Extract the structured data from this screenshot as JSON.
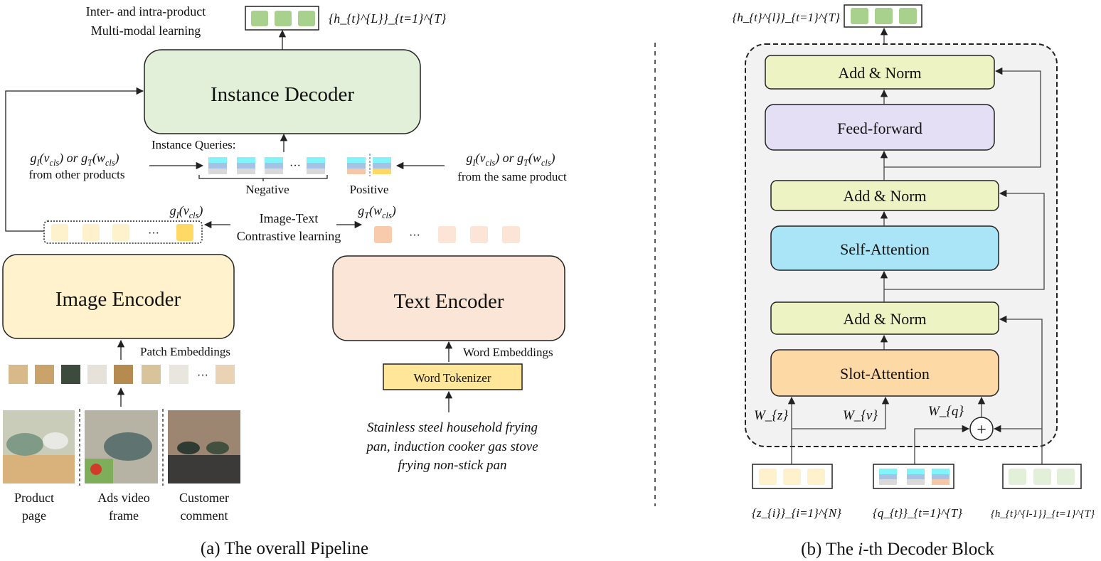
{
  "left": {
    "top_label_line1": "Inter- and intra-product",
    "top_label_line2": "Multi-modal learning",
    "output_math": "{h_{t}^{L}}_{t=1}^{T}",
    "instance_decoder": "Instance Decoder",
    "instance_queries": "Instance Queries:",
    "other_math": "g_{I}(v_{cls}) or g_{T}(w_{cls})",
    "other_text": "from other products",
    "same_math": "g_{I}(v_{cls}) or g_{T}(w_{cls})",
    "same_text": "from the same product",
    "negative": "Negative",
    "positive": "Positive",
    "ellipsis": "···",
    "gi_math": "g_{I}(v_{cls})",
    "gt_math": "g_{T}(w_{cls})",
    "contrastive_line1": "Image-Text",
    "contrastive_line2": "Contrastive learning",
    "image_encoder": "Image Encoder",
    "text_encoder": "Text Encoder",
    "patch_embeddings": "Patch Embeddings",
    "word_embeddings": "Word Embeddings",
    "word_tokenizer": "Word Tokenizer",
    "input_text": [
      "Stainless steel household frying",
      "pan, induction cooker gas stove",
      "frying non-stick pan"
    ],
    "sources": [
      {
        "line1": "Product",
        "line2": "page"
      },
      {
        "line1": "Ads video",
        "line2": "frame"
      },
      {
        "line1": "Customer",
        "line2": "comment"
      }
    ],
    "caption": "(a) The overall Pipeline"
  },
  "right": {
    "output_math": "{h_{t}^{l}}_{t=1}^{T}",
    "add_norm": "Add & Norm",
    "feed_forward": "Feed-forward",
    "self_attention": "Self-Attention",
    "slot_attention": "Slot-Attention",
    "wz": "W_{z}",
    "wv": "W_{v}",
    "wq": "W_{q}",
    "plus": "+",
    "z_math": "{z_{i}}_{i=1}^{N}",
    "q_math": "{q_{t}}_{t=1}^{T}",
    "h_math": "{h_{t}^{l-1}}_{t=1}^{T}",
    "caption_prefix": "(b) The ",
    "caption_var": "i",
    "caption_suffix": "-th Decoder Block"
  },
  "colors": {
    "decoder_green": "#e2f0d9",
    "output_green": "#a9d18e",
    "image_yellow": "#fff2cc",
    "text_peach": "#fbe5d6",
    "tokenizer": "#ffe699",
    "add_norm": "#eef3c3",
    "feed_forward": "#e4dff5",
    "self_attention": "#a9e5f6",
    "slot_attention": "#fdd9a6",
    "query_cyan": "#80f4f8",
    "query_blue": "#a6c3e6",
    "query_gray": "#d9d9d9"
  }
}
